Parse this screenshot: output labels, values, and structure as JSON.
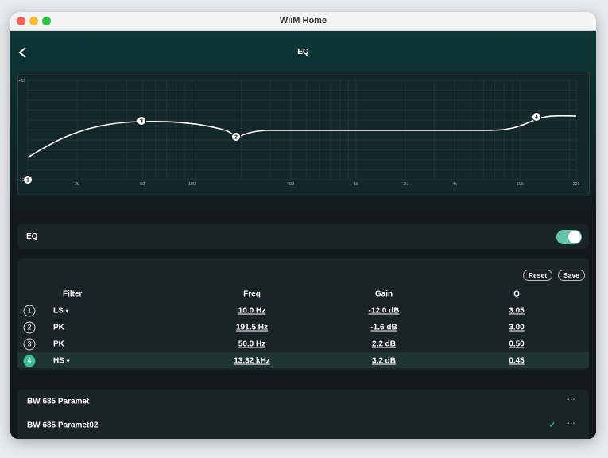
{
  "window": {
    "title": "WiiM Home"
  },
  "header": {
    "title": "EQ"
  },
  "graph": {
    "y_labels": [
      "+12",
      "-12"
    ],
    "x_labels": [
      "20",
      "50",
      "100",
      "400",
      "1k",
      "2k",
      "4k",
      "10k",
      "22k"
    ],
    "nodes": [
      "1",
      "2",
      "3",
      "4"
    ]
  },
  "eq_toggle": {
    "label": "EQ"
  },
  "filters": {
    "buttons": [
      "Reset",
      "Save"
    ],
    "columns": [
      "Filter",
      "Freq",
      "Gain",
      "Q"
    ],
    "rows": [
      [
        "1",
        "LS",
        "10.0 Hz",
        "-12.0 dB",
        "3.05"
      ],
      [
        "2",
        "PK",
        "191.5 Hz",
        "-1.6 dB",
        "3.00"
      ],
      [
        "3",
        "PK",
        "50.0 Hz",
        "2.2 dB",
        "0.50"
      ],
      [
        "4",
        "HS",
        "13.32 kHz",
        "3.2 dB",
        "0.45"
      ]
    ]
  },
  "presets": [
    "BW 685 Paramet",
    "BW 685 Paramet02"
  ]
}
